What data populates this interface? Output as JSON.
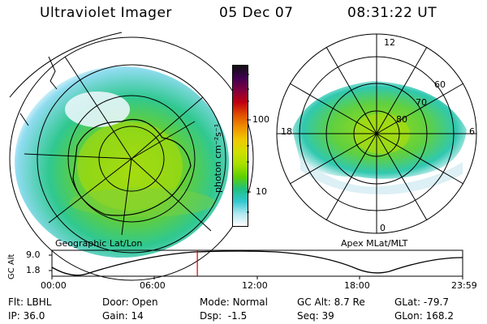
{
  "header": {
    "instrument": "Ultraviolet Imager",
    "date": "05 Dec 07",
    "time": "08:31:22 UT"
  },
  "left_map": {
    "caption": "Geographic Lat/Lon"
  },
  "colorbar": {
    "unit_label": "photon cm⁻²s⁻¹",
    "ticks": [
      {
        "label": "100",
        "value": 100
      },
      {
        "label": "10",
        "value": 10
      }
    ],
    "colors": [
      "#101010",
      "#400050",
      "#800040",
      "#c00010",
      "#e05000",
      "#f09000",
      "#f0c800",
      "#d0e000",
      "#a8e000",
      "#60d000",
      "#20c080",
      "#30c8d0",
      "#b0e8f0",
      "#ffffff"
    ]
  },
  "right_map": {
    "caption": "Apex MLat/MLT",
    "mlt_labels": {
      "top": "12",
      "left": "18",
      "right": "6",
      "bottom": "0"
    },
    "lat_labels": [
      "60",
      "70",
      "80"
    ]
  },
  "altitude_strip": {
    "ylabel": "GC Alt",
    "yticks": [
      "9.0",
      "1.8"
    ],
    "xticks": [
      "00:00",
      "06:00",
      "12:00",
      "18:00",
      "23:59"
    ],
    "current_time_fraction": 0.354
  },
  "status": {
    "row1": [
      {
        "label": "Flt:",
        "value": "LBHL"
      },
      {
        "label": "Door:",
        "value": "Open"
      },
      {
        "label": "Mode:",
        "value": "Normal"
      },
      {
        "label": "GC Alt:",
        "value": "8.7 Re"
      },
      {
        "label": "GLat:",
        "value": "-79.7"
      }
    ],
    "row2": [
      {
        "label": "IP:",
        "value": "36.0"
      },
      {
        "label": "Gain:",
        "value": "14"
      },
      {
        "label": "Dsp:",
        "value": "-1.5"
      },
      {
        "label": "Seq:",
        "value": "39"
      },
      {
        "label": "GLon:",
        "value": "168.2"
      }
    ]
  }
}
